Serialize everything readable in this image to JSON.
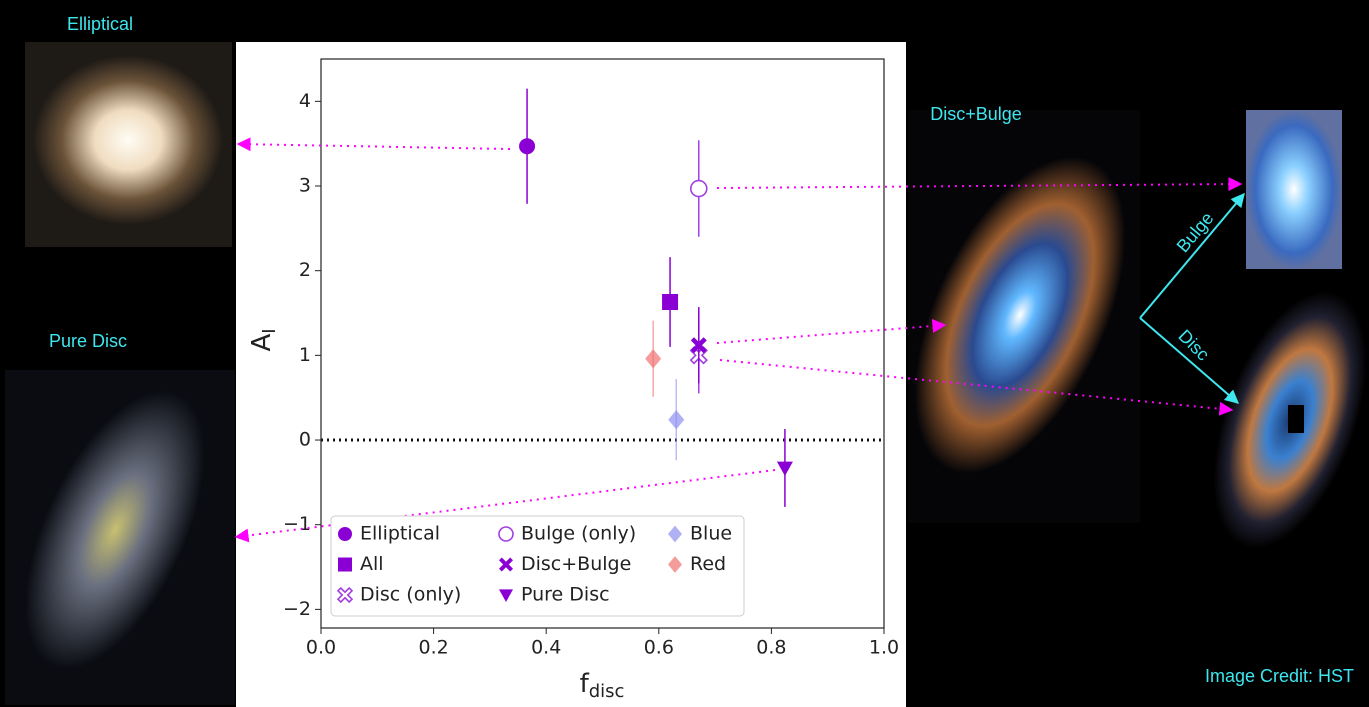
{
  "chart_data": {
    "type": "scatter",
    "xlabel": [
      "f",
      "disc"
    ],
    "ylabel": [
      "A",
      "I"
    ],
    "xlim": [
      0,
      1
    ],
    "ylim": [
      -2.22,
      4.5
    ],
    "xticks": [
      {
        "value": 0,
        "label": "0.0"
      },
      {
        "value": 0.2,
        "label": "0.2"
      },
      {
        "value": 0.4,
        "label": "0.4"
      },
      {
        "value": 0.6,
        "label": "0.6"
      },
      {
        "value": 0.8,
        "label": "0.8"
      },
      {
        "value": 1,
        "label": "1.0"
      }
    ],
    "yticks": [
      {
        "value": -2,
        "label": "−2"
      },
      {
        "value": -1,
        "label": "−1"
      },
      0,
      1,
      2,
      3,
      4
    ],
    "zero_line": 0,
    "legend": "lower left",
    "series": [
      {
        "name": "Elliptical",
        "color": "#8a00d4",
        "marker": "o",
        "filled": true,
        "x": [
          0.366
        ],
        "values": [
          3.47
        ],
        "errors": [
          0.68
        ]
      },
      {
        "name": "All",
        "color": "#8a00d4",
        "marker": "s",
        "filled": true,
        "x": [
          0.62
        ],
        "values": [
          1.63
        ],
        "errors": [
          0.53
        ]
      },
      {
        "name": "Disc (only)",
        "color": "#a040e0",
        "marker": "X",
        "filled": false,
        "x": [
          0.671
        ],
        "values": [
          1.0
        ],
        "errors": [
          0.45
        ]
      },
      {
        "name": "Bulge (only)",
        "color": "#a040e0",
        "marker": "o",
        "filled": false,
        "x": [
          0.671
        ],
        "values": [
          2.97
        ],
        "errors": [
          0.57
        ]
      },
      {
        "name": "Disc+Bulge",
        "color": "#8a00d4",
        "marker": "X",
        "filled": true,
        "x": [
          0.671
        ],
        "values": [
          1.12
        ],
        "errors": [
          0.45
        ]
      },
      {
        "name": "Pure Disc",
        "color": "#8a00d4",
        "marker": "v",
        "filled": true,
        "x": [
          0.824
        ],
        "values": [
          -0.33
        ],
        "errors": [
          0.46
        ]
      },
      {
        "name": "Blue",
        "color": "#8f8ff0",
        "marker": "D",
        "filled": true,
        "x": [
          0.631
        ],
        "values": [
          0.24
        ],
        "errors": [
          0.48
        ]
      },
      {
        "name": "Red",
        "color": "#f07070",
        "marker": "D",
        "filled": true,
        "x": [
          0.59
        ],
        "values": [
          0.96
        ],
        "errors": [
          0.45
        ]
      }
    ],
    "annotations": [
      "Elliptical",
      "Pure Disc",
      "Disc+Bulge",
      "Bulge",
      "Disc",
      "Image Credit: HST"
    ]
  }
}
